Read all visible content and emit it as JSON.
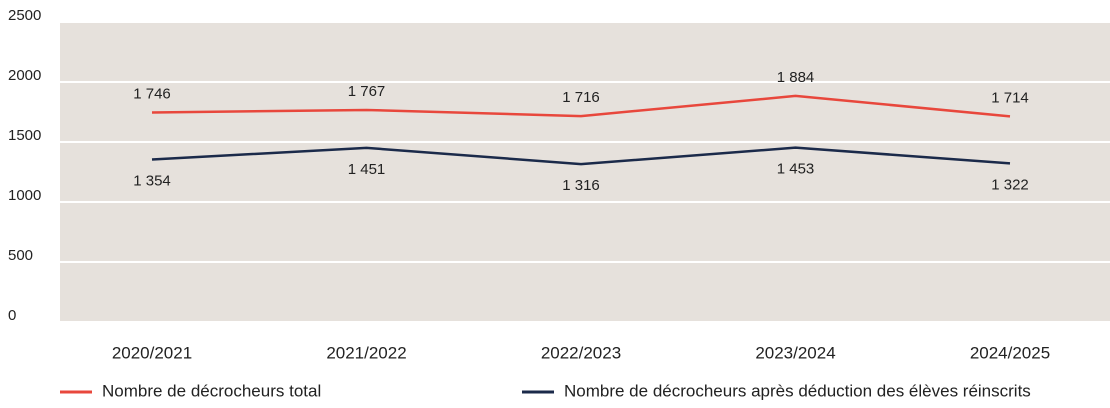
{
  "chart_data": {
    "type": "line",
    "categories": [
      "2020/2021",
      "2021/2022",
      "2022/2023",
      "2023/2024",
      "2024/2025"
    ],
    "series": [
      {
        "name": "Nombre de décrocheurs total",
        "color": "#e8473c",
        "values": [
          1746,
          1767,
          1716,
          1884,
          1714
        ],
        "value_labels": [
          "1 746",
          "1 767",
          "1 716",
          "1 884",
          "1 714"
        ]
      },
      {
        "name": "Nombre de décrocheurs après déduction des élèves réinscrits",
        "color": "#1b2a4a",
        "values": [
          1354,
          1451,
          1316,
          1453,
          1322
        ],
        "value_labels": [
          "1 354",
          "1 451",
          "1 316",
          "1 453",
          "1 322"
        ]
      }
    ],
    "ylim": [
      0,
      2500
    ],
    "yticks": [
      0,
      500,
      1000,
      1500,
      2000,
      2500
    ],
    "grid": true,
    "background": "#e6e1dc",
    "legend": "bottom"
  }
}
